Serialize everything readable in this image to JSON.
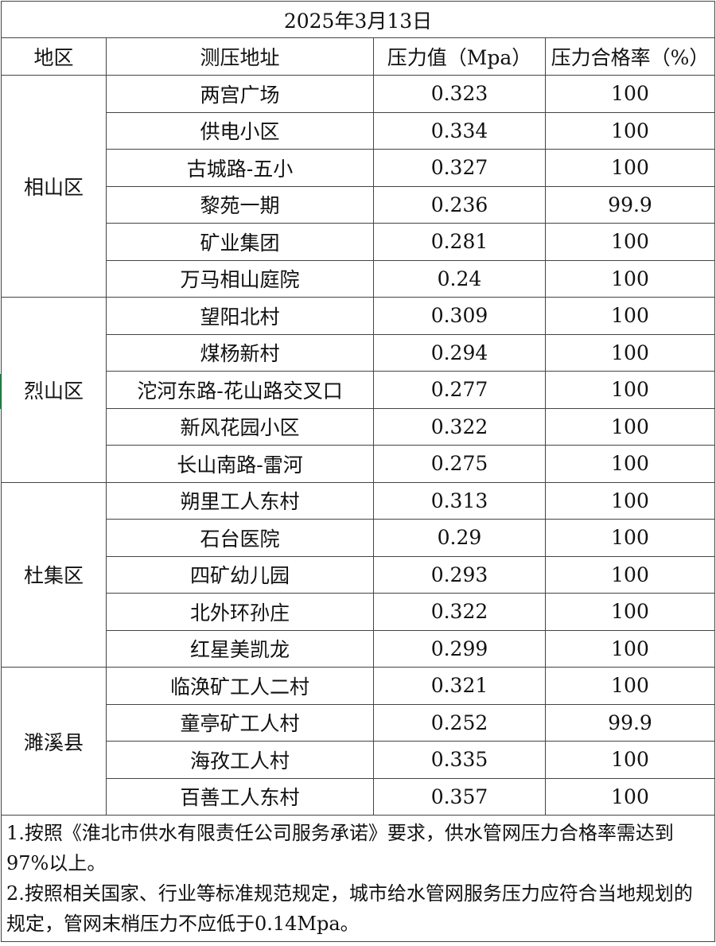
{
  "title": "2025年3月13日",
  "headers": [
    "地区",
    "测压地址",
    "压力值（Mpa）",
    "压力合格率（%）"
  ],
  "regions": [
    {
      "name": "相山区",
      "rows": [
        {
          "address": "两宫广场",
          "pressure": "0.323",
          "rate": "100"
        },
        {
          "address": "供电小区",
          "pressure": "0.334",
          "rate": "100"
        },
        {
          "address": "古城路-五小",
          "pressure": "0.327",
          "rate": "100"
        },
        {
          "address": "黎苑一期",
          "pressure": "0.236",
          "rate": "99.9"
        },
        {
          "address": "矿业集团",
          "pressure": "0.281",
          "rate": "100"
        },
        {
          "address": "万马相山庭院",
          "pressure": "0.24",
          "rate": "100"
        }
      ]
    },
    {
      "name": "烈山区",
      "rows": [
        {
          "address": "望阳北村",
          "pressure": "0.309",
          "rate": "100"
        },
        {
          "address": "煤杨新村",
          "pressure": "0.294",
          "rate": "100"
        },
        {
          "address": "沱河东路-花山路交叉口",
          "pressure": "0.277",
          "rate": "100"
        },
        {
          "address": "新风花园小区",
          "pressure": "0.322",
          "rate": "100"
        },
        {
          "address": "长山南路-雷河",
          "pressure": "0.275",
          "rate": "100"
        }
      ]
    },
    {
      "name": "杜集区",
      "rows": [
        {
          "address": "朔里工人东村",
          "pressure": "0.313",
          "rate": "100"
        },
        {
          "address": "石台医院",
          "pressure": "0.29",
          "rate": "100"
        },
        {
          "address": "四矿幼儿园",
          "pressure": "0.293",
          "rate": "100"
        },
        {
          "address": "北外环孙庄",
          "pressure": "0.322",
          "rate": "100"
        },
        {
          "address": "红星美凯龙",
          "pressure": "0.299",
          "rate": "100"
        }
      ]
    },
    {
      "name": "濉溪县",
      "rows": [
        {
          "address": "临涣矿工人二村",
          "pressure": "0.321",
          "rate": "100"
        },
        {
          "address": "童亭矿工人村",
          "pressure": "0.252",
          "rate": "99.9"
        },
        {
          "address": "海孜工人村",
          "pressure": "0.335",
          "rate": "100"
        },
        {
          "address": "百善工人东村",
          "pressure": "0.357",
          "rate": "100"
        }
      ]
    }
  ],
  "notes": [
    "1.按照《淮北市供水有限责任公司服务承诺》要求，供水管网压力合格率需达到97%以上。",
    "2.按照相关国家、行业等标准规范规定，城市给水管网服务压力应符合当地规划的规定，管网末梢压力不应低于0.14Mpa。"
  ],
  "colors": {
    "border": "#444444",
    "selection_marker": "#1e8a4a"
  }
}
